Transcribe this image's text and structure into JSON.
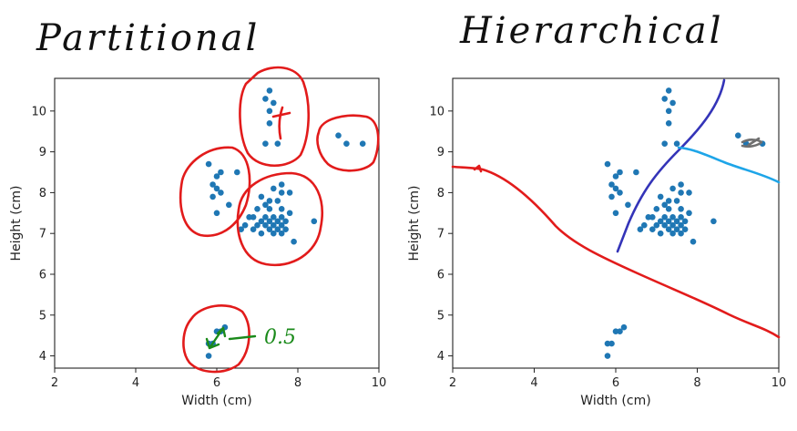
{
  "chart_data": [
    {
      "type": "scatter",
      "title": "Partitional",
      "xlabel": "Width (cm)",
      "ylabel": "Height (cm)",
      "xlim": [
        2,
        10
      ],
      "ylim": [
        3.7,
        10.8
      ],
      "xticks": [
        2,
        4,
        6,
        8,
        10
      ],
      "yticks": [
        4,
        5,
        6,
        7,
        8,
        9,
        10
      ],
      "point_color": "#1f77b4",
      "annotation_color": "#e21b1b",
      "note_color": "#1a8a1a",
      "note": "0.5",
      "points": [
        [
          7.3,
          10.5
        ],
        [
          7.2,
          10.3
        ],
        [
          7.4,
          10.2
        ],
        [
          7.3,
          10.0
        ],
        [
          7.3,
          9.7
        ],
        [
          7.2,
          9.2
        ],
        [
          7.5,
          9.2
        ],
        [
          9.0,
          9.4
        ],
        [
          9.2,
          9.2
        ],
        [
          9.6,
          9.2
        ],
        [
          5.8,
          8.7
        ],
        [
          6.1,
          8.5
        ],
        [
          6.0,
          8.4
        ],
        [
          6.5,
          8.5
        ],
        [
          5.9,
          8.2
        ],
        [
          6.0,
          8.1
        ],
        [
          6.1,
          8.0
        ],
        [
          5.9,
          7.9
        ],
        [
          6.3,
          7.7
        ],
        [
          6.0,
          7.5
        ],
        [
          7.6,
          8.2
        ],
        [
          7.4,
          8.1
        ],
        [
          7.6,
          8.0
        ],
        [
          7.8,
          8.0
        ],
        [
          7.1,
          7.9
        ],
        [
          7.3,
          7.8
        ],
        [
          7.5,
          7.8
        ],
        [
          7.2,
          7.7
        ],
        [
          7.0,
          7.6
        ],
        [
          7.3,
          7.6
        ],
        [
          7.6,
          7.6
        ],
        [
          7.8,
          7.5
        ],
        [
          6.9,
          7.4
        ],
        [
          7.2,
          7.4
        ],
        [
          7.4,
          7.4
        ],
        [
          7.6,
          7.4
        ],
        [
          6.8,
          7.4
        ],
        [
          7.1,
          7.3
        ],
        [
          7.3,
          7.3
        ],
        [
          7.5,
          7.3
        ],
        [
          7.7,
          7.3
        ],
        [
          8.4,
          7.3
        ],
        [
          6.7,
          7.2
        ],
        [
          7.0,
          7.2
        ],
        [
          7.2,
          7.2
        ],
        [
          7.4,
          7.2
        ],
        [
          7.6,
          7.2
        ],
        [
          6.6,
          7.1
        ],
        [
          6.9,
          7.1
        ],
        [
          7.3,
          7.1
        ],
        [
          7.5,
          7.1
        ],
        [
          7.7,
          7.1
        ],
        [
          7.1,
          7.0
        ],
        [
          7.4,
          7.0
        ],
        [
          7.6,
          7.0
        ],
        [
          7.9,
          6.8
        ],
        [
          6.2,
          4.7
        ],
        [
          6.1,
          4.6
        ],
        [
          6.0,
          4.6
        ],
        [
          5.9,
          4.3
        ],
        [
          5.8,
          4.3
        ],
        [
          5.8,
          4.0
        ]
      ]
    },
    {
      "type": "scatter",
      "title": "Hierarchical",
      "xlabel": "Width (cm)",
      "ylabel": "Height (cm)",
      "xlim": [
        2,
        10
      ],
      "ylim": [
        3.7,
        10.8
      ],
      "xticks": [
        2,
        4,
        6,
        8,
        10
      ],
      "yticks": [
        4,
        5,
        6,
        7,
        8,
        9,
        10
      ],
      "point_color": "#1f77b4",
      "split_colors": [
        "#e21b1b",
        "#3434b8",
        "#1ea5e8",
        "#707070"
      ],
      "points": [
        [
          7.3,
          10.5
        ],
        [
          7.2,
          10.3
        ],
        [
          7.4,
          10.2
        ],
        [
          7.3,
          10.0
        ],
        [
          7.3,
          9.7
        ],
        [
          7.2,
          9.2
        ],
        [
          7.5,
          9.2
        ],
        [
          9.0,
          9.4
        ],
        [
          9.2,
          9.2
        ],
        [
          9.6,
          9.2
        ],
        [
          5.8,
          8.7
        ],
        [
          6.1,
          8.5
        ],
        [
          6.0,
          8.4
        ],
        [
          6.5,
          8.5
        ],
        [
          5.9,
          8.2
        ],
        [
          6.0,
          8.1
        ],
        [
          6.1,
          8.0
        ],
        [
          5.9,
          7.9
        ],
        [
          6.3,
          7.7
        ],
        [
          6.0,
          7.5
        ],
        [
          7.6,
          8.2
        ],
        [
          7.4,
          8.1
        ],
        [
          7.6,
          8.0
        ],
        [
          7.8,
          8.0
        ],
        [
          7.1,
          7.9
        ],
        [
          7.3,
          7.8
        ],
        [
          7.5,
          7.8
        ],
        [
          7.2,
          7.7
        ],
        [
          7.0,
          7.6
        ],
        [
          7.3,
          7.6
        ],
        [
          7.6,
          7.6
        ],
        [
          7.8,
          7.5
        ],
        [
          6.9,
          7.4
        ],
        [
          7.2,
          7.4
        ],
        [
          7.4,
          7.4
        ],
        [
          7.6,
          7.4
        ],
        [
          6.8,
          7.4
        ],
        [
          7.1,
          7.3
        ],
        [
          7.3,
          7.3
        ],
        [
          7.5,
          7.3
        ],
        [
          7.7,
          7.3
        ],
        [
          8.4,
          7.3
        ],
        [
          6.7,
          7.2
        ],
        [
          7.0,
          7.2
        ],
        [
          7.2,
          7.2
        ],
        [
          7.4,
          7.2
        ],
        [
          7.6,
          7.2
        ],
        [
          6.6,
          7.1
        ],
        [
          6.9,
          7.1
        ],
        [
          7.3,
          7.1
        ],
        [
          7.5,
          7.1
        ],
        [
          7.7,
          7.1
        ],
        [
          7.1,
          7.0
        ],
        [
          7.4,
          7.0
        ],
        [
          7.6,
          7.0
        ],
        [
          7.9,
          6.8
        ],
        [
          6.2,
          4.7
        ],
        [
          6.1,
          4.6
        ],
        [
          6.0,
          4.6
        ],
        [
          5.9,
          4.3
        ],
        [
          5.8,
          4.3
        ],
        [
          5.8,
          4.0
        ]
      ]
    }
  ]
}
